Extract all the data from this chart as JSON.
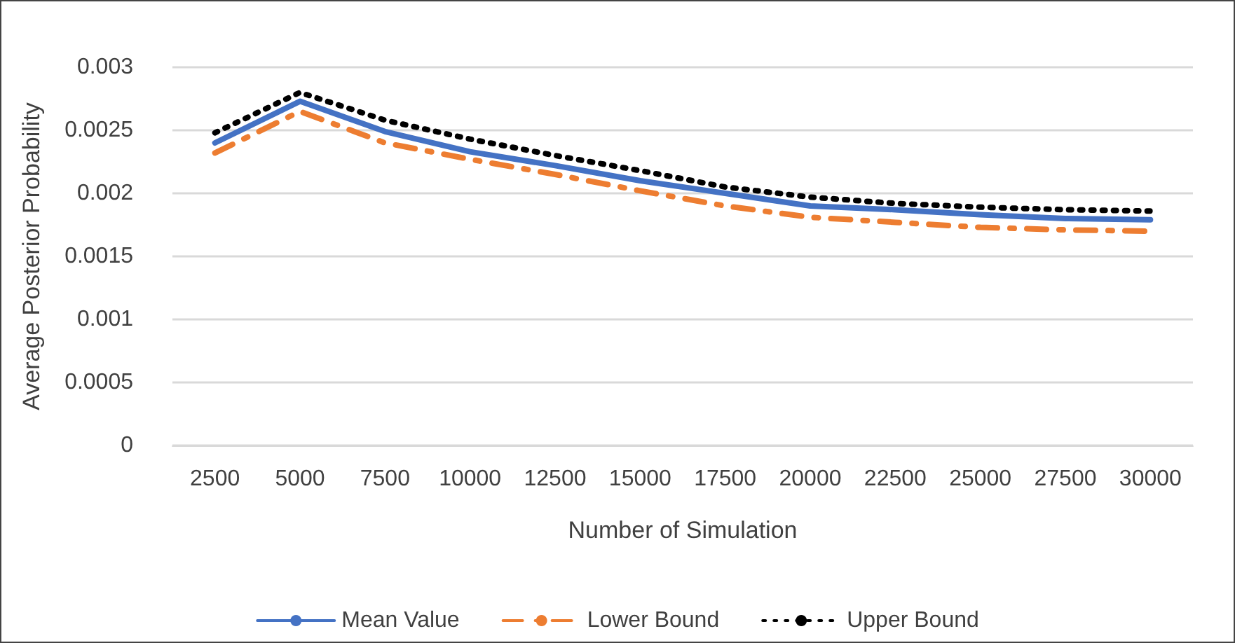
{
  "chart_data": {
    "type": "line",
    "xlabel": "Number of Simulation",
    "ylabel": "Average Posterior Probability",
    "categories": [
      "2500",
      "5000",
      "7500",
      "10000",
      "12500",
      "15000",
      "17500",
      "20000",
      "22500",
      "25000",
      "27500",
      "30000"
    ],
    "series": [
      {
        "name": "Mean Value",
        "color": "#4472c4",
        "line_style": "solid",
        "values": [
          0.0024,
          0.00273,
          0.00249,
          0.00233,
          0.00222,
          0.0021,
          0.002,
          0.0019,
          0.00187,
          0.00183,
          0.0018,
          0.00179
        ]
      },
      {
        "name": "Lower Bound",
        "color": "#ed7d31",
        "line_style": "dashed",
        "values": [
          0.00232,
          0.00265,
          0.0024,
          0.00227,
          0.00215,
          0.00202,
          0.0019,
          0.00181,
          0.00177,
          0.00173,
          0.00171,
          0.0017
        ]
      },
      {
        "name": "Upper Bound",
        "color": "#000000",
        "line_style": "dotted",
        "values": [
          0.00248,
          0.0028,
          0.00258,
          0.00243,
          0.0023,
          0.00218,
          0.00205,
          0.00197,
          0.00192,
          0.00189,
          0.00187,
          0.00186
        ]
      }
    ],
    "ylim": [
      0,
      0.003
    ],
    "yticks": [
      0,
      0.0005,
      0.001,
      0.0015,
      0.002,
      0.0025,
      0.003
    ],
    "grid": "y",
    "legend": "bottom",
    "marker": "none"
  }
}
